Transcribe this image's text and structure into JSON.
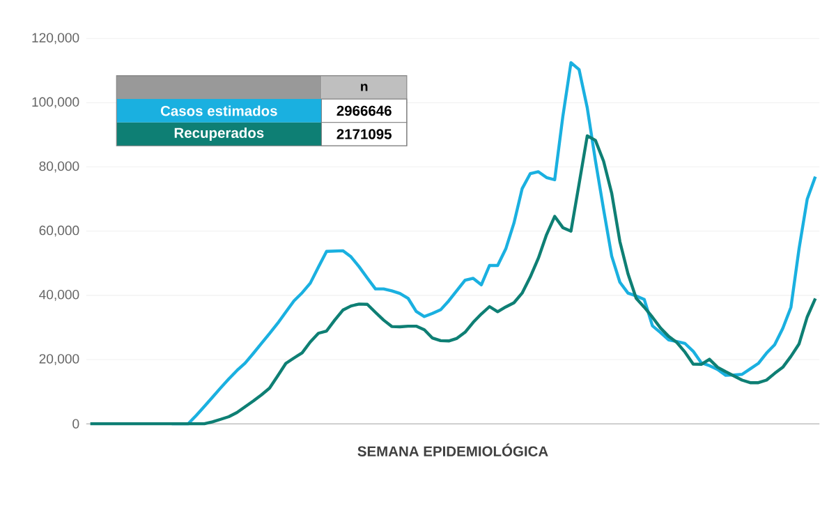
{
  "chart_data": {
    "type": "line",
    "xlabel": "SEMANA EPIDEMIOLÓGICA",
    "categories": [
      null,
      null,
      null,
      null,
      null,
      null,
      null,
      null,
      null,
      null,
      null,
      null,
      null,
      null,
      null,
      null,
      null,
      null,
      null,
      null,
      null,
      null,
      null,
      null,
      null,
      null,
      null,
      null,
      null,
      null,
      null,
      null,
      null,
      null,
      null,
      null,
      null,
      null,
      null,
      null,
      null,
      null,
      null,
      null,
      null,
      null,
      null,
      null,
      null,
      null,
      null,
      null,
      null,
      null,
      null,
      null,
      null,
      null,
      null,
      null,
      null,
      null,
      null,
      null,
      null,
      null,
      null,
      null,
      null,
      null,
      null,
      null,
      null,
      null,
      null,
      null,
      null,
      null,
      null,
      null,
      null,
      null,
      null,
      null,
      null,
      null,
      null,
      null,
      null,
      null
    ],
    "series": [
      {
        "name": "Casos estimados",
        "color": "#1ab0e0",
        "values": [
          null,
          null,
          null,
          null,
          null,
          null,
          null,
          null,
          null,
          null,
          0,
          0,
          0,
          2600,
          5400,
          8300,
          11200,
          14000,
          16600,
          18900,
          21900,
          25000,
          28100,
          31300,
          34800,
          38300,
          40800,
          43800,
          48800,
          53700,
          53800,
          53900,
          52000,
          48900,
          45400,
          42000,
          42000,
          41400,
          40600,
          39100,
          35000,
          33400,
          34400,
          35500,
          38300,
          41500,
          44700,
          45300,
          43300,
          49300,
          49300,
          54500,
          62500,
          73200,
          77900,
          78500,
          76700,
          76000,
          95700,
          112500,
          110300,
          98400,
          82000,
          66800,
          52200,
          44100,
          40700,
          39800,
          38700,
          30500,
          28400,
          26100,
          25600,
          25000,
          22600,
          19000,
          18100,
          16900,
          15100,
          15200,
          15400,
          17100,
          18800,
          22000,
          24600,
          29700,
          36300,
          54600,
          70000,
          77000
        ]
      },
      {
        "name": "Recuperados",
        "color": "#0e7f74",
        "values": [
          0,
          0,
          0,
          0,
          0,
          0,
          0,
          0,
          0,
          0,
          0,
          0,
          0,
          0,
          0,
          600,
          1400,
          2200,
          3500,
          5300,
          7100,
          9000,
          11100,
          14900,
          18800,
          20500,
          22100,
          25500,
          28200,
          28900,
          32300,
          35400,
          36700,
          37300,
          37200,
          34700,
          32300,
          30300,
          30200,
          30400,
          30400,
          29300,
          26700,
          25900,
          25800,
          26600,
          28500,
          31600,
          34200,
          36500,
          34900,
          36400,
          37700,
          40700,
          45700,
          51600,
          58900,
          64600,
          61100,
          60000,
          74800,
          89700,
          88300,
          81800,
          71800,
          56800,
          46700,
          39100,
          36300,
          33200,
          29800,
          27200,
          25300,
          22300,
          18600,
          18500,
          20100,
          17600,
          16200,
          14900,
          13600,
          12800,
          12800,
          13600,
          15700,
          17600,
          21000,
          24900,
          33300,
          39000
        ]
      }
    ],
    "ylim": [
      0,
      120000
    ],
    "yticks": [
      0,
      {
        "value": 20000,
        "label": "20,000"
      },
      {
        "value": 40000,
        "label": "40,000"
      },
      {
        "value": 60000,
        "label": "60,000"
      },
      {
        "value": 80000,
        "label": "80,000"
      },
      {
        "value": 100000,
        "label": "100,000"
      },
      {
        "value": 120000,
        "label": "120,000"
      }
    ],
    "grid": "y",
    "legend": "top left",
    "marker": "none",
    "line_style": "solid",
    "annotations": [
      "n",
      "2966646",
      "2171095"
    ]
  }
}
